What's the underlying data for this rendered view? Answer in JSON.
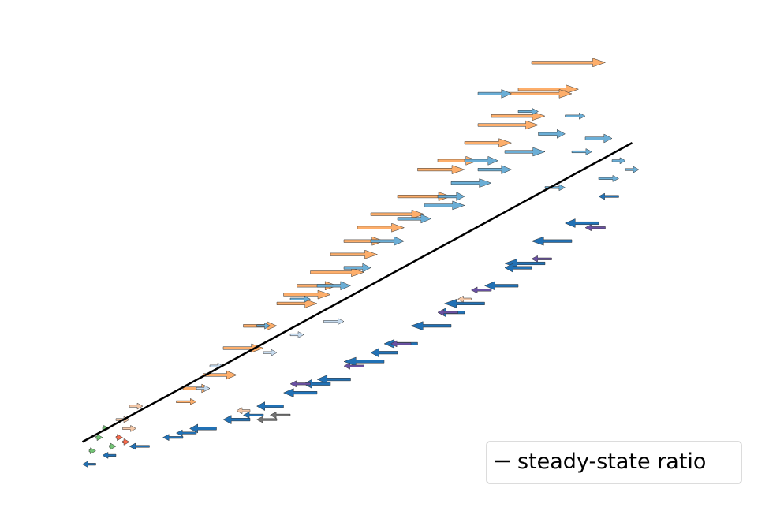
{
  "chart_data": {
    "type": "scatter",
    "title": "",
    "xlabel": "",
    "ylabel": "",
    "axes_visible": false,
    "grid": false,
    "xlim": [
      0,
      100
    ],
    "ylim": [
      0,
      100
    ],
    "legend": {
      "placement": "bottom-right",
      "entries": [
        "steady-state ratio"
      ]
    },
    "line": {
      "name": "steady-state ratio",
      "color": "#000000",
      "x": [
        5,
        87
      ],
      "y": [
        7,
        74
      ]
    },
    "series": [
      {
        "color": "#fdae6b",
        "marker": "velocity-arrow",
        "points": [
          [
            72,
            92,
            11
          ],
          [
            70,
            86,
            9
          ],
          [
            68,
            85,
            10
          ],
          [
            66,
            80,
            8
          ],
          [
            64,
            78,
            9
          ],
          [
            62,
            74,
            7
          ],
          [
            58,
            70,
            6
          ],
          [
            55,
            68,
            7
          ],
          [
            52,
            62,
            8
          ],
          [
            48,
            58,
            8
          ],
          [
            46,
            55,
            7
          ],
          [
            44,
            52,
            6
          ],
          [
            42,
            49,
            7
          ],
          [
            39,
            45,
            8
          ],
          [
            37,
            42,
            6
          ],
          [
            35,
            40,
            7
          ],
          [
            34,
            38,
            6
          ],
          [
            29,
            33,
            5
          ],
          [
            26,
            28,
            6
          ],
          [
            23,
            22,
            5
          ],
          [
            20,
            19,
            4
          ],
          [
            19,
            16,
            3
          ]
        ]
      },
      {
        "color": "#6baed6",
        "marker": "velocity-arrow",
        "points": [
          [
            80,
            75,
            4
          ],
          [
            78,
            72,
            3
          ],
          [
            73,
            76,
            4
          ],
          [
            68,
            72,
            6
          ],
          [
            64,
            68,
            5
          ],
          [
            60,
            65,
            6
          ],
          [
            56,
            60,
            6
          ],
          [
            52,
            57,
            5
          ],
          [
            48,
            52,
            5
          ],
          [
            44,
            46,
            4
          ],
          [
            40,
            42,
            5
          ],
          [
            36,
            39,
            3
          ],
          [
            31,
            33,
            2
          ],
          [
            74,
            64,
            3
          ],
          [
            84,
            70,
            2
          ],
          [
            86,
            68,
            2
          ],
          [
            82,
            66,
            3
          ],
          [
            77,
            80,
            3
          ],
          [
            64,
            85,
            5
          ],
          [
            70,
            81,
            3
          ],
          [
            58,
            62,
            4
          ],
          [
            62,
            70,
            5
          ]
        ]
      },
      {
        "color": "#c6dbef",
        "marker": "velocity-arrow",
        "points": [
          [
            24,
            24,
            2
          ],
          [
            32,
            27,
            2
          ],
          [
            36,
            31,
            2
          ],
          [
            41,
            34,
            3
          ],
          [
            22,
            19,
            2
          ]
        ]
      },
      {
        "color": "#2171b5",
        "marker": "velocity-arrow",
        "points": [
          [
            82,
            56,
            -5
          ],
          [
            78,
            52,
            -6
          ],
          [
            74,
            47,
            -6
          ],
          [
            70,
            42,
            -5
          ],
          [
            65,
            38,
            -6
          ],
          [
            60,
            33,
            -6
          ],
          [
            55,
            29,
            -5
          ],
          [
            50,
            25,
            -6
          ],
          [
            45,
            21,
            -5
          ],
          [
            40,
            18,
            -5
          ],
          [
            35,
            15,
            -4
          ],
          [
            30,
            12,
            -4
          ],
          [
            25,
            10,
            -4
          ],
          [
            20,
            8,
            -3
          ],
          [
            15,
            6,
            -3
          ],
          [
            10,
            4,
            -2
          ],
          [
            7,
            2,
            -2
          ],
          [
            72,
            46,
            -4
          ],
          [
            62,
            36,
            -4
          ],
          [
            52,
            27,
            -4
          ],
          [
            42,
            20,
            -4
          ],
          [
            32,
            13,
            -3
          ],
          [
            22,
            9,
            -3
          ],
          [
            85,
            62,
            -3
          ]
        ]
      },
      {
        "color": "#6a51a3",
        "marker": "velocity-arrow",
        "points": [
          [
            83,
            55,
            -3
          ],
          [
            75,
            48,
            -3
          ],
          [
            66,
            41,
            -3
          ],
          [
            61,
            36,
            -3
          ],
          [
            54,
            29,
            -3
          ],
          [
            47,
            24,
            -3
          ],
          [
            39,
            20,
            -3
          ]
        ]
      },
      {
        "color": "#737373",
        "marker": "velocity-arrow",
        "points": [
          [
            36,
            13,
            -3
          ],
          [
            34,
            12,
            -3
          ]
        ]
      },
      {
        "color": "#f4c8a8",
        "marker": "velocity-arrow",
        "points": [
          [
            12,
            15,
            2
          ],
          [
            10,
            12,
            2
          ],
          [
            11,
            10,
            2
          ],
          [
            63,
            39,
            -2
          ],
          [
            30,
            14,
            -2
          ]
        ]
      },
      {
        "color": "#74c476",
        "marker": "velocity-arrow",
        "points": [
          [
            8,
            10,
            1
          ],
          [
            7,
            8,
            1
          ],
          [
            9,
            6,
            1
          ],
          [
            6,
            5,
            1
          ]
        ]
      },
      {
        "color": "#fb6a4a",
        "marker": "velocity-arrow",
        "points": [
          [
            10,
            8,
            1
          ],
          [
            11,
            7,
            1
          ]
        ]
      }
    ]
  }
}
